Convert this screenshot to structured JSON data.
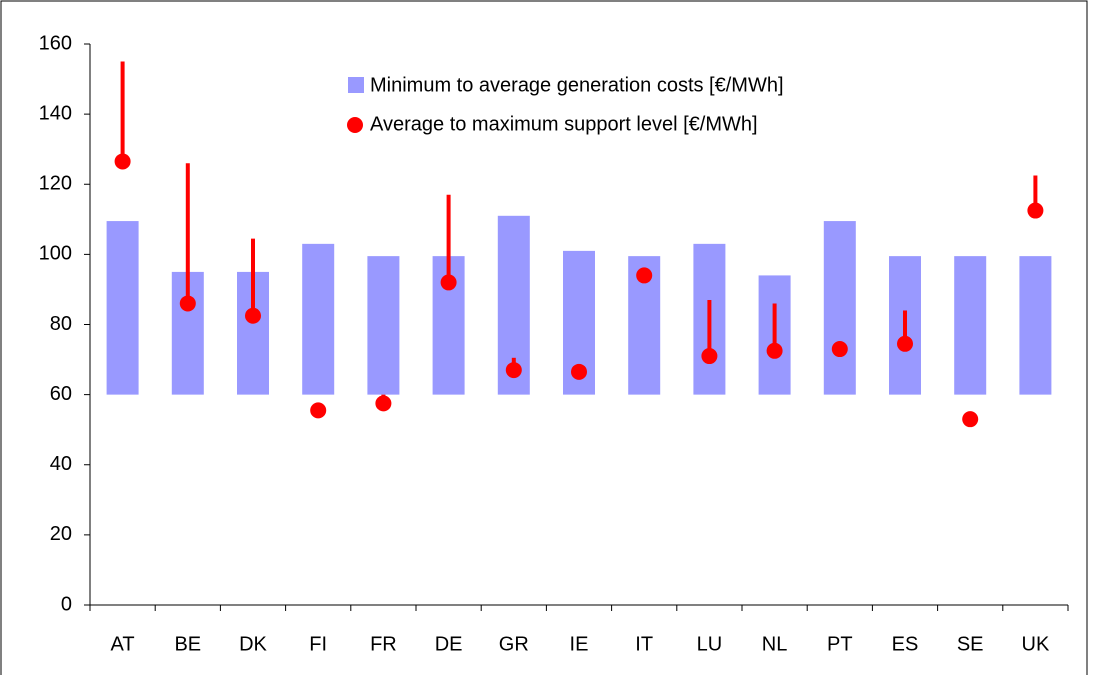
{
  "chart_data": {
    "type": "floating-bar-range-dot",
    "categories": [
      "AT",
      "BE",
      "DK",
      "FI",
      "FR",
      "DE",
      "GR",
      "IE",
      "IT",
      "LU",
      "NL",
      "PT",
      "ES",
      "SE",
      "UK"
    ],
    "series": [
      {
        "name": "Minimum to average generation costs [€/MWh]",
        "color": "#9999ff",
        "base": [
          60,
          60,
          60,
          60,
          60,
          60,
          60,
          60,
          60,
          60,
          60,
          60,
          60,
          60,
          60
        ],
        "values": [
          109.5,
          95,
          95,
          103,
          99.5,
          99.5,
          111,
          101,
          99.5,
          103,
          94,
          109.5,
          99.5,
          99.5,
          99.5
        ]
      },
      {
        "name": "Average to maximum support level [€/MWh]",
        "color": "#ff0000",
        "values": [
          126.5,
          86,
          82.5,
          55.5,
          57.5,
          92,
          67,
          66.5,
          94,
          71,
          72.5,
          73,
          74.5,
          53,
          112.5
        ],
        "max": [
          155,
          126,
          104.5,
          null,
          60,
          117,
          70.5,
          null,
          null,
          87,
          86,
          null,
          84,
          null,
          122.5
        ]
      }
    ],
    "ylim": [
      0,
      160
    ],
    "yticks": [
      0,
      20,
      40,
      60,
      80,
      100,
      120,
      140,
      160
    ]
  }
}
